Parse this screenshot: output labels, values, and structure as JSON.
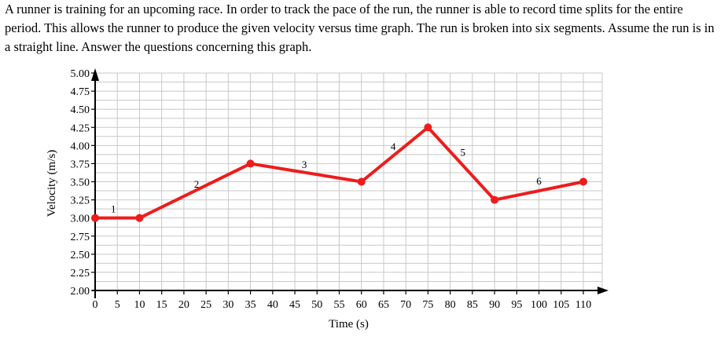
{
  "problem": {
    "text": "A runner is training for an upcoming race. In order to track the pace of the run, the runner is able to record time splits for the entire period. This allows the runner to produce the given velocity versus time graph. The run is broken into six segments. Assume the run is in a straight line. Answer the questions concerning this graph."
  },
  "chart_data": {
    "type": "line",
    "xlabel": "Time (s)",
    "ylabel": "Velocity (m/s)",
    "xlim": [
      0,
      110
    ],
    "ylim": [
      2.0,
      5.0
    ],
    "grid": true,
    "x_ticks": [
      "0",
      "5",
      "10",
      "15",
      "20",
      "25",
      "30",
      "35",
      "40",
      "45",
      "50",
      "55",
      "60",
      "65",
      "70",
      "75",
      "80",
      "85",
      "90",
      "95",
      "100",
      "105",
      "110"
    ],
    "y_ticks": [
      "2.00",
      "2.25",
      "2.50",
      "2.75",
      "3.00",
      "3.25",
      "3.50",
      "3.75",
      "4.00",
      "4.25",
      "4.50",
      "4.75",
      "5.00"
    ],
    "series": [
      {
        "color": "#ee1c1c",
        "points": [
          {
            "x": 0,
            "y": 3.0
          },
          {
            "x": 10,
            "y": 3.0
          },
          {
            "x": 35,
            "y": 3.75
          },
          {
            "x": 60,
            "y": 3.5
          },
          {
            "x": 75,
            "y": 4.25
          },
          {
            "x": 90,
            "y": 3.25
          },
          {
            "x": 110,
            "y": 3.5
          }
        ]
      }
    ],
    "segment_labels": [
      "1",
      "2",
      "3",
      "4",
      "5",
      "6"
    ],
    "colors": {
      "line": "#ee1c1c",
      "grid": "#c8c8c8",
      "axis": "#000000"
    }
  }
}
